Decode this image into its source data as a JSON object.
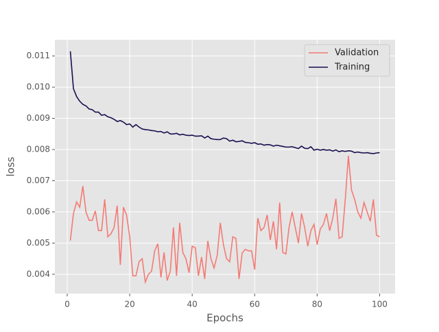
{
  "chart_data": {
    "type": "line",
    "xlabel": "Epochs",
    "ylabel": "loss",
    "x": [
      1,
      2,
      3,
      4,
      5,
      6,
      7,
      8,
      9,
      10,
      11,
      12,
      13,
      14,
      15,
      16,
      17,
      18,
      19,
      20,
      21,
      22,
      23,
      24,
      25,
      26,
      27,
      28,
      29,
      30,
      31,
      32,
      33,
      34,
      35,
      36,
      37,
      38,
      39,
      40,
      41,
      42,
      43,
      44,
      45,
      46,
      47,
      48,
      49,
      50,
      51,
      52,
      53,
      54,
      55,
      56,
      57,
      58,
      59,
      60,
      61,
      62,
      63,
      64,
      65,
      66,
      67,
      68,
      69,
      70,
      71,
      72,
      73,
      74,
      75,
      76,
      77,
      78,
      79,
      80,
      81,
      82,
      83,
      84,
      85,
      86,
      87,
      88,
      89,
      90,
      91,
      92,
      93,
      94,
      95,
      96,
      97,
      98,
      99,
      100
    ],
    "series": [
      {
        "name": "Validation",
        "color": "#f47a74",
        "values": [
          0.00508,
          0.00595,
          0.00632,
          0.00615,
          0.00683,
          0.006,
          0.00573,
          0.00573,
          0.00603,
          0.0054,
          0.0054,
          0.0064,
          0.0052,
          0.0053,
          0.0055,
          0.0062,
          0.0043,
          0.00615,
          0.0059,
          0.0052,
          0.00395,
          0.00395,
          0.0044,
          0.0045,
          0.00375,
          0.004,
          0.0041,
          0.00475,
          0.00498,
          0.0039,
          0.0047,
          0.0038,
          0.0041,
          0.0055,
          0.00395,
          0.00565,
          0.0047,
          0.0045,
          0.00405,
          0.0049,
          0.00485,
          0.00395,
          0.00455,
          0.00385,
          0.00507,
          0.0045,
          0.0042,
          0.0046,
          0.00565,
          0.00495,
          0.0045,
          0.0044,
          0.0052,
          0.00515,
          0.00385,
          0.00468,
          0.0048,
          0.00475,
          0.00475,
          0.00415,
          0.0058,
          0.0054,
          0.0055,
          0.0059,
          0.0051,
          0.0057,
          0.0048,
          0.0063,
          0.0047,
          0.00465,
          0.0055,
          0.006,
          0.0055,
          0.005,
          0.00595,
          0.0055,
          0.0049,
          0.0054,
          0.0056,
          0.00495,
          0.00545,
          0.0056,
          0.00595,
          0.0054,
          0.0058,
          0.00642,
          0.00515,
          0.0052,
          0.0064,
          0.0078,
          0.0067,
          0.0064,
          0.006,
          0.0058,
          0.0063,
          0.006,
          0.0057,
          0.0064,
          0.00525,
          0.0052
        ]
      },
      {
        "name": "Training",
        "color": "#170d4d",
        "values": [
          0.01115,
          0.00995,
          0.0097,
          0.00955,
          0.00945,
          0.0094,
          0.0093,
          0.00928,
          0.0092,
          0.0092,
          0.0091,
          0.00912,
          0.00905,
          0.00902,
          0.00897,
          0.0089,
          0.00893,
          0.00888,
          0.0088,
          0.00882,
          0.00872,
          0.0088,
          0.00872,
          0.00866,
          0.00864,
          0.00863,
          0.00861,
          0.0086,
          0.00857,
          0.00858,
          0.00853,
          0.00857,
          0.0085,
          0.0085,
          0.00852,
          0.00847,
          0.00849,
          0.00846,
          0.00845,
          0.00846,
          0.00843,
          0.00843,
          0.00844,
          0.00837,
          0.00843,
          0.00835,
          0.00833,
          0.00832,
          0.00832,
          0.00837,
          0.00835,
          0.00827,
          0.0083,
          0.00825,
          0.00826,
          0.00828,
          0.00823,
          0.00822,
          0.0082,
          0.00822,
          0.00817,
          0.00818,
          0.00814,
          0.00816,
          0.00815,
          0.00811,
          0.00814,
          0.00812,
          0.0081,
          0.00808,
          0.00808,
          0.00809,
          0.00806,
          0.00803,
          0.00811,
          0.00804,
          0.00803,
          0.00809,
          0.00798,
          0.00801,
          0.00798,
          0.008,
          0.00798,
          0.00799,
          0.00795,
          0.00799,
          0.00793,
          0.00796,
          0.00794,
          0.00796,
          0.00795,
          0.0079,
          0.00792,
          0.0079,
          0.00789,
          0.0079,
          0.00788,
          0.00787,
          0.00789,
          0.0079
        ]
      }
    ],
    "xlim": [
      -3.95,
      104.95
    ],
    "xticks": [
      0,
      20,
      40,
      60,
      80,
      100
    ],
    "ylim": [
      0.00338,
      0.01152
    ],
    "yticks": [
      0.004,
      0.005,
      0.006,
      0.007,
      0.008,
      0.009,
      {
        "value": 0.01,
        "label": "0.010"
      },
      0.011
    ],
    "grid": true,
    "legend": "upper-right"
  }
}
